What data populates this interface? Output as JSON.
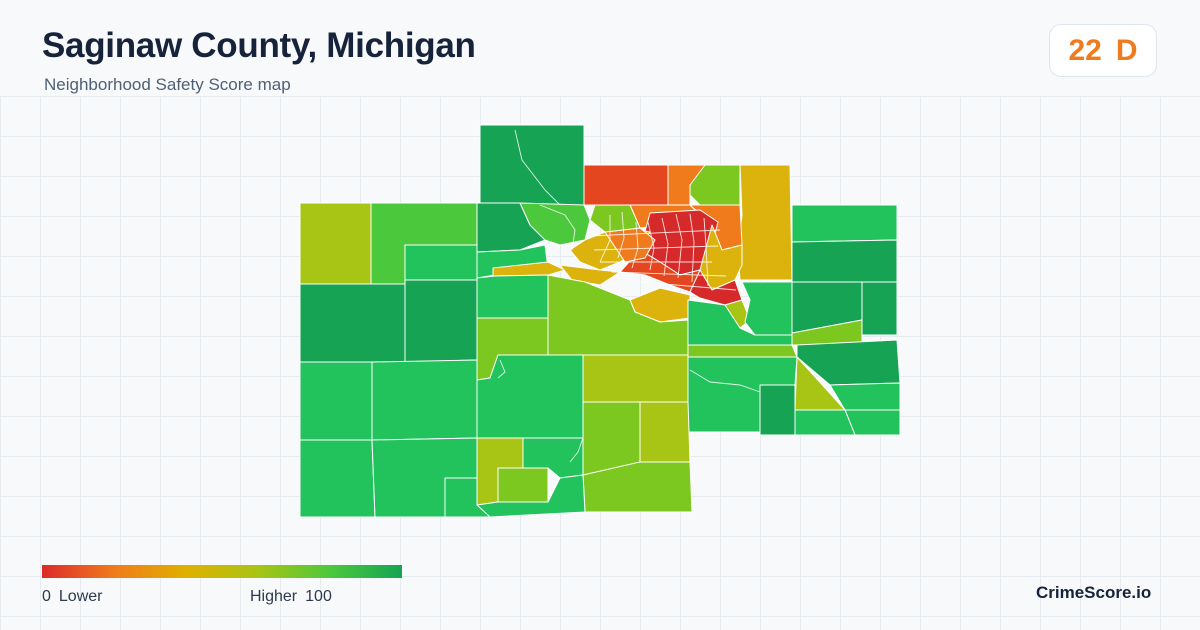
{
  "header": {
    "title": "Saginaw County, Michigan",
    "subtitle": "Neighborhood Safety Score map"
  },
  "score": {
    "value": "22",
    "grade": "D",
    "color": "#f07b1d"
  },
  "legend": {
    "min_value": "0",
    "min_label": "Lower",
    "max_label": "Higher",
    "max_value": "100",
    "gradient_colors": [
      "#dc2a2a",
      "#f07b1d",
      "#e0b000",
      "#a8c414",
      "#4cc83c",
      "#16a353"
    ]
  },
  "brand": "CrimeScore.io",
  "map_palette": {
    "dark_green": "#16a353",
    "green": "#22c25c",
    "light_green": "#4cc83c",
    "yellow_green": "#7cc820",
    "olive": "#a8c414",
    "gold": "#dcb30c",
    "orange": "#f07b1d",
    "red_orange": "#e4461f",
    "red": "#d62a2a"
  }
}
